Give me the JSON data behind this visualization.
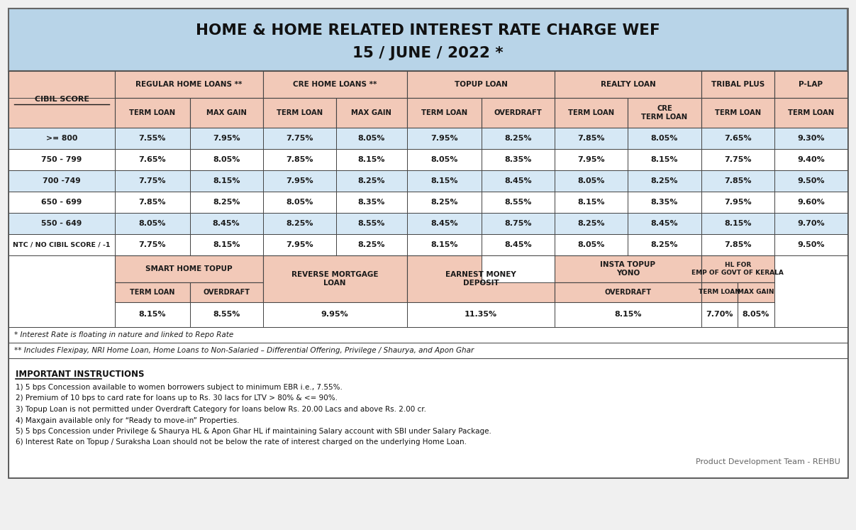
{
  "title_line1": "HOME & HOME RELATED INTEREST RATE CHARGE WEF",
  "title_line2": "15 / JUNE / 2022 *",
  "title_bg": "#b8d4e8",
  "header_bg": "#f2c9b8",
  "row_bg_light": "#d6e8f5",
  "row_bg_white": "#ffffff",
  "footnote1": "* Interest Rate is floating in nature and linked to Repo Rate",
  "footnote2": "** Includes Flexipay, NRI Home Loan, Home Loans to Non-Salaried – Differential Offering, Privilege / Shaurya, and Apon Ghar",
  "instructions_title": "IMPORTANT INSTRUCTIONS",
  "instructions": [
    "1) 5 bps Concession available to women borrowers subject to minimum EBR i.e., 7.55%.",
    "2) Premium of 10 bps to card rate for loans up to Rs. 30 lacs for LTV > 80% & <= 90%.",
    "3) Topup Loan is not permitted under Overdraft Category for loans below Rs. 20.00 Lacs and above Rs. 2.00 cr.",
    "4) Maxgain available only for “Ready to move-in” Properties.",
    "5) 5 bps Concession under Privilege & Shaurya HL & Apon Ghar HL if maintaining Salary account with SBI under Salary Package.",
    "6) Interest Rate on Topup / Suraksha Loan should not be below the rate of interest charged on the underlying Home Loan."
  ],
  "footer": "Product Development Team - REHBU",
  "data_rows": [
    [
      ">= 800",
      "7.55%",
      "7.95%",
      "7.75%",
      "8.05%",
      "7.95%",
      "8.25%",
      "7.85%",
      "8.05%",
      "7.65%",
      "9.30%",
      "light"
    ],
    [
      "750 - 799",
      "7.65%",
      "8.05%",
      "7.85%",
      "8.15%",
      "8.05%",
      "8.35%",
      "7.95%",
      "8.15%",
      "7.75%",
      "9.40%",
      "white"
    ],
    [
      "700 -749",
      "7.75%",
      "8.15%",
      "7.95%",
      "8.25%",
      "8.15%",
      "8.45%",
      "8.05%",
      "8.25%",
      "7.85%",
      "9.50%",
      "light"
    ],
    [
      "650 - 699",
      "7.85%",
      "8.25%",
      "8.05%",
      "8.35%",
      "8.25%",
      "8.55%",
      "8.15%",
      "8.35%",
      "7.95%",
      "9.60%",
      "white"
    ],
    [
      "550 - 649",
      "8.05%",
      "8.45%",
      "8.25%",
      "8.55%",
      "8.45%",
      "8.75%",
      "8.25%",
      "8.45%",
      "8.15%",
      "9.70%",
      "light"
    ],
    [
      "NTC / NO CIBIL SCORE / -1",
      "7.75%",
      "8.15%",
      "7.95%",
      "8.25%",
      "8.15%",
      "8.45%",
      "8.05%",
      "8.25%",
      "7.85%",
      "9.50%",
      "white"
    ]
  ]
}
